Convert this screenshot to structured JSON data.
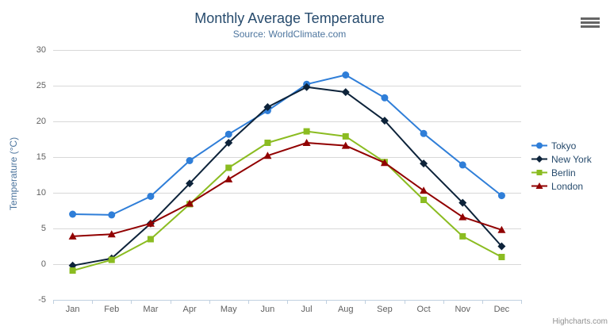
{
  "header": {
    "title": "Monthly Average Temperature",
    "subtitle": "Source: WorldClimate.com"
  },
  "menu": {
    "icon": "hamburger-icon"
  },
  "credits": {
    "label": "Highcharts.com"
  },
  "colors": {
    "background": "#ffffff",
    "title": "#274b6d",
    "subtitle": "#4d759e",
    "axis_title": "#4d759e",
    "tick_label": "#606060",
    "gridline": "#d8d8d8",
    "axis_line": "#c0d0e0",
    "legend_text": "#274b6d",
    "credits": "#909090",
    "menu_icon": "#666666"
  },
  "chart_data": {
    "type": "line",
    "title": "Monthly Average Temperature",
    "subtitle": "Source: WorldClimate.com",
    "xlabel": "",
    "ylabel": "Temperature (°C)",
    "categories": [
      "Jan",
      "Feb",
      "Mar",
      "Apr",
      "May",
      "Jun",
      "Jul",
      "Aug",
      "Sep",
      "Oct",
      "Nov",
      "Dec"
    ],
    "yticks": [
      -5,
      0,
      5,
      10,
      15,
      20,
      25,
      30
    ],
    "ylim": [
      -5,
      30
    ],
    "grid": true,
    "legend_position": "right",
    "series": [
      {
        "name": "Tokyo",
        "color": "#2f7ed8",
        "marker": "circle",
        "values": [
          7.0,
          6.9,
          9.5,
          14.5,
          18.2,
          21.5,
          25.2,
          26.5,
          23.3,
          18.3,
          13.9,
          9.6
        ]
      },
      {
        "name": "New York",
        "color": "#0d233a",
        "marker": "diamond",
        "values": [
          -0.2,
          0.8,
          5.7,
          11.3,
          17.0,
          22.0,
          24.8,
          24.1,
          20.1,
          14.1,
          8.6,
          2.5
        ]
      },
      {
        "name": "Berlin",
        "color": "#8bbc21",
        "marker": "square",
        "values": [
          -0.9,
          0.6,
          3.5,
          8.4,
          13.5,
          17.0,
          18.6,
          17.9,
          14.3,
          9.0,
          3.9,
          1.0
        ]
      },
      {
        "name": "London",
        "color": "#910000",
        "marker": "triangle",
        "values": [
          3.9,
          4.2,
          5.7,
          8.5,
          11.9,
          15.2,
          17.0,
          16.6,
          14.2,
          10.3,
          6.6,
          4.8
        ]
      }
    ]
  }
}
